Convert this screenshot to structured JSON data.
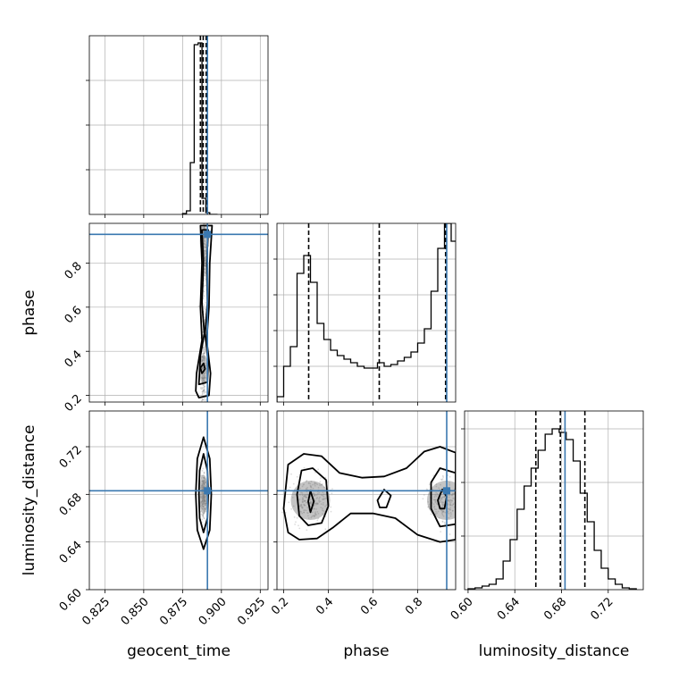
{
  "chart_data": {
    "type": "corner",
    "parameters": [
      "geocent_time",
      "phase",
      "luminosity_distance"
    ],
    "truths": {
      "geocent_time": 0.891,
      "phase": 0.93,
      "luminosity_distance": 0.683
    },
    "colors": {
      "truth": "#3a78b0",
      "hist": "#000000",
      "contour": "#000000",
      "grid": "#b0b0b0",
      "scatter": "#9a9a9a"
    },
    "grid": true,
    "panels": [
      {
        "id": "hist-geocent-time",
        "kind": "histogram",
        "param": "geocent_time",
        "xlim": [
          0.815,
          0.93
        ],
        "ylim": [
          0,
          1
        ],
        "bins": [
          0.875,
          0.8775,
          0.88,
          0.8825,
          0.885,
          0.8875,
          0.89,
          0.8925,
          0.895,
          0.8975
        ],
        "values": [
          0.005,
          0.02,
          0.29,
          0.95,
          0.96,
          0.09,
          0.01,
          0,
          0
        ],
        "quantiles": [
          0.8865,
          0.8883,
          0.8902
        ],
        "xticks": [
          0.825,
          0.85,
          0.875,
          0.9,
          0.925
        ],
        "yticks": [
          0.25,
          0.5,
          0.75
        ]
      },
      {
        "id": "hist-phase",
        "kind": "histogram",
        "param": "phase",
        "xlim": [
          0.17,
          0.97
        ],
        "ylim": [
          0,
          1
        ],
        "bins": [
          0.17,
          0.2,
          0.23,
          0.26,
          0.29,
          0.32,
          0.35,
          0.38,
          0.41,
          0.44,
          0.47,
          0.5,
          0.53,
          0.56,
          0.59,
          0.62,
          0.65,
          0.68,
          0.71,
          0.74,
          0.77,
          0.8,
          0.83,
          0.86,
          0.89,
          0.92,
          0.95,
          0.98
        ],
        "values": [
          0.03,
          0.2,
          0.31,
          0.72,
          0.82,
          0.67,
          0.44,
          0.35,
          0.29,
          0.26,
          0.24,
          0.22,
          0.2,
          0.19,
          0.19,
          0.22,
          0.2,
          0.21,
          0.23,
          0.25,
          0.28,
          0.33,
          0.41,
          0.62,
          0.86,
          1.0,
          0.9
        ],
        "quantiles": [
          0.312,
          0.628,
          0.925
        ],
        "xticks": [
          0.2,
          0.4,
          0.6,
          0.8
        ],
        "yticks": [
          0.2,
          0.4,
          0.6,
          0.8
        ]
      },
      {
        "id": "hist-luminosity-distance",
        "kind": "histogram",
        "param": "luminosity_distance",
        "xlim": [
          0.597,
          0.75
        ],
        "ylim": [
          0,
          1
        ],
        "bins": [
          0.6,
          0.606,
          0.612,
          0.618,
          0.624,
          0.63,
          0.636,
          0.642,
          0.648,
          0.654,
          0.66,
          0.666,
          0.672,
          0.678,
          0.684,
          0.69,
          0.696,
          0.702,
          0.708,
          0.714,
          0.72,
          0.726,
          0.732,
          0.738,
          0.744
        ],
        "values": [
          0.005,
          0.01,
          0.02,
          0.03,
          0.06,
          0.16,
          0.28,
          0.45,
          0.58,
          0.68,
          0.78,
          0.87,
          0.9,
          0.88,
          0.84,
          0.72,
          0.54,
          0.38,
          0.22,
          0.12,
          0.06,
          0.03,
          0.01,
          0.005
        ],
        "quantiles": [
          0.658,
          0.679,
          0.7
        ],
        "xticks": [
          0.6,
          0.64,
          0.68,
          0.72
        ],
        "yticks": [
          0.3,
          0.6,
          0.9
        ]
      },
      {
        "id": "2d-geocent-phase",
        "kind": "2d",
        "xparam": "geocent_time",
        "yparam": "phase",
        "xlim": [
          0.815,
          0.93
        ],
        "ylim": [
          0.17,
          0.98
        ],
        "xticks": [
          0.825,
          0.85,
          0.875,
          0.9,
          0.925
        ],
        "yticks": [
          0.2,
          0.4,
          0.6,
          0.8
        ],
        "ytick_labels": [
          "0.2",
          "0.4",
          "0.6",
          "0.8"
        ],
        "contours": [
          [
            [
              0.8855,
              0.19
            ],
            [
              0.892,
              0.2
            ],
            [
              0.893,
              0.3
            ],
            [
              0.8905,
              0.45
            ],
            [
              0.892,
              0.6
            ],
            [
              0.8925,
              0.8
            ],
            [
              0.894,
              0.97
            ],
            [
              0.8865,
              0.97
            ],
            [
              0.8875,
              0.8
            ],
            [
              0.8865,
              0.6
            ],
            [
              0.8875,
              0.45
            ],
            [
              0.884,
              0.3
            ],
            [
              0.8835,
              0.22
            ]
          ],
          [
            [
              0.8855,
              0.25
            ],
            [
              0.891,
              0.26
            ],
            [
              0.8915,
              0.35
            ],
            [
              0.8895,
              0.48
            ],
            [
              0.891,
              0.62
            ],
            [
              0.8905,
              0.8
            ],
            [
              0.8915,
              0.95
            ],
            [
              0.8875,
              0.95
            ],
            [
              0.8885,
              0.8
            ],
            [
              0.8875,
              0.62
            ],
            [
              0.889,
              0.48
            ],
            [
              0.8865,
              0.38
            ]
          ],
          [
            [
              0.8875,
              0.3
            ],
            [
              0.8895,
              0.32
            ],
            [
              0.8885,
              0.345
            ],
            [
              0.8865,
              0.325
            ]
          ]
        ],
        "density_centers": [
          [
            0.8885,
            0.32
          ],
          [
            0.889,
            0.9
          ]
        ]
      },
      {
        "id": "2d-geocent-lumdist",
        "kind": "2d",
        "xparam": "geocent_time",
        "yparam": "luminosity_distance",
        "xlim": [
          0.815,
          0.93
        ],
        "ylim": [
          0.6,
          0.75
        ],
        "xticks": [
          0.825,
          0.85,
          0.875,
          0.9,
          0.925
        ],
        "xtick_labels": [
          "0.825",
          "0.850",
          "0.875",
          "0.900",
          "0.925"
        ],
        "yticks": [
          0.6,
          0.64,
          0.68,
          0.72
        ],
        "ytick_labels": [
          "0.60",
          "0.64",
          "0.68",
          "0.72"
        ],
        "contours": [
          [
            [
              0.8885,
              0.634
            ],
            [
              0.8925,
              0.65
            ],
            [
              0.8935,
              0.68
            ],
            [
              0.8925,
              0.71
            ],
            [
              0.8885,
              0.728
            ],
            [
              0.8845,
              0.71
            ],
            [
              0.8835,
              0.68
            ],
            [
              0.8845,
              0.65
            ]
          ],
          [
            [
              0.8885,
              0.648
            ],
            [
              0.891,
              0.66
            ],
            [
              0.8915,
              0.68
            ],
            [
              0.891,
              0.7
            ],
            [
              0.8885,
              0.714
            ],
            [
              0.886,
              0.7
            ],
            [
              0.8855,
              0.68
            ],
            [
              0.886,
              0.66
            ]
          ]
        ],
        "density_centers": [
          [
            0.8885,
            0.68
          ]
        ]
      },
      {
        "id": "2d-phase-lumdist",
        "kind": "2d",
        "xparam": "phase",
        "yparam": "luminosity_distance",
        "xlim": [
          0.17,
          0.97
        ],
        "ylim": [
          0.6,
          0.75
        ],
        "xticks": [
          0.2,
          0.4,
          0.6,
          0.8
        ],
        "xtick_labels": [
          "0.2",
          "0.4",
          "0.6",
          "0.8"
        ],
        "yticks": [
          0.6,
          0.64,
          0.68,
          0.72
        ],
        "contours": [
          [
            [
              0.2,
              0.668
            ],
            [
              0.22,
              0.705
            ],
            [
              0.29,
              0.714
            ],
            [
              0.37,
              0.712
            ],
            [
              0.45,
              0.698
            ],
            [
              0.55,
              0.694
            ],
            [
              0.65,
              0.695
            ],
            [
              0.75,
              0.702
            ],
            [
              0.83,
              0.716
            ],
            [
              0.9,
              0.72
            ],
            [
              0.97,
              0.715
            ],
            [
              0.97,
              0.642
            ],
            [
              0.9,
              0.64
            ],
            [
              0.8,
              0.646
            ],
            [
              0.7,
              0.66
            ],
            [
              0.6,
              0.664
            ],
            [
              0.5,
              0.664
            ],
            [
              0.42,
              0.652
            ],
            [
              0.35,
              0.643
            ],
            [
              0.27,
              0.642
            ],
            [
              0.22,
              0.648
            ]
          ],
          [
            [
              0.26,
              0.68
            ],
            [
              0.28,
              0.7
            ],
            [
              0.33,
              0.702
            ],
            [
              0.39,
              0.692
            ],
            [
              0.4,
              0.67
            ],
            [
              0.37,
              0.656
            ],
            [
              0.31,
              0.654
            ],
            [
              0.27,
              0.662
            ]
          ],
          [
            [
              0.31,
              0.674
            ],
            [
              0.32,
              0.683
            ],
            [
              0.335,
              0.674
            ],
            [
              0.32,
              0.665
            ]
          ],
          [
            [
              0.62,
              0.675
            ],
            [
              0.65,
              0.684
            ],
            [
              0.68,
              0.679
            ],
            [
              0.66,
              0.669
            ],
            [
              0.63,
              0.669
            ]
          ],
          [
            [
              0.86,
              0.69
            ],
            [
              0.9,
              0.702
            ],
            [
              0.97,
              0.698
            ],
            [
              0.97,
              0.655
            ],
            [
              0.9,
              0.653
            ],
            [
              0.86,
              0.668
            ]
          ],
          [
            [
              0.89,
              0.675
            ],
            [
              0.91,
              0.684
            ],
            [
              0.93,
              0.678
            ],
            [
              0.92,
              0.668
            ],
            [
              0.9,
              0.668
            ]
          ]
        ],
        "density_centers": [
          [
            0.32,
            0.675
          ],
          [
            0.93,
            0.675
          ]
        ]
      }
    ]
  }
}
